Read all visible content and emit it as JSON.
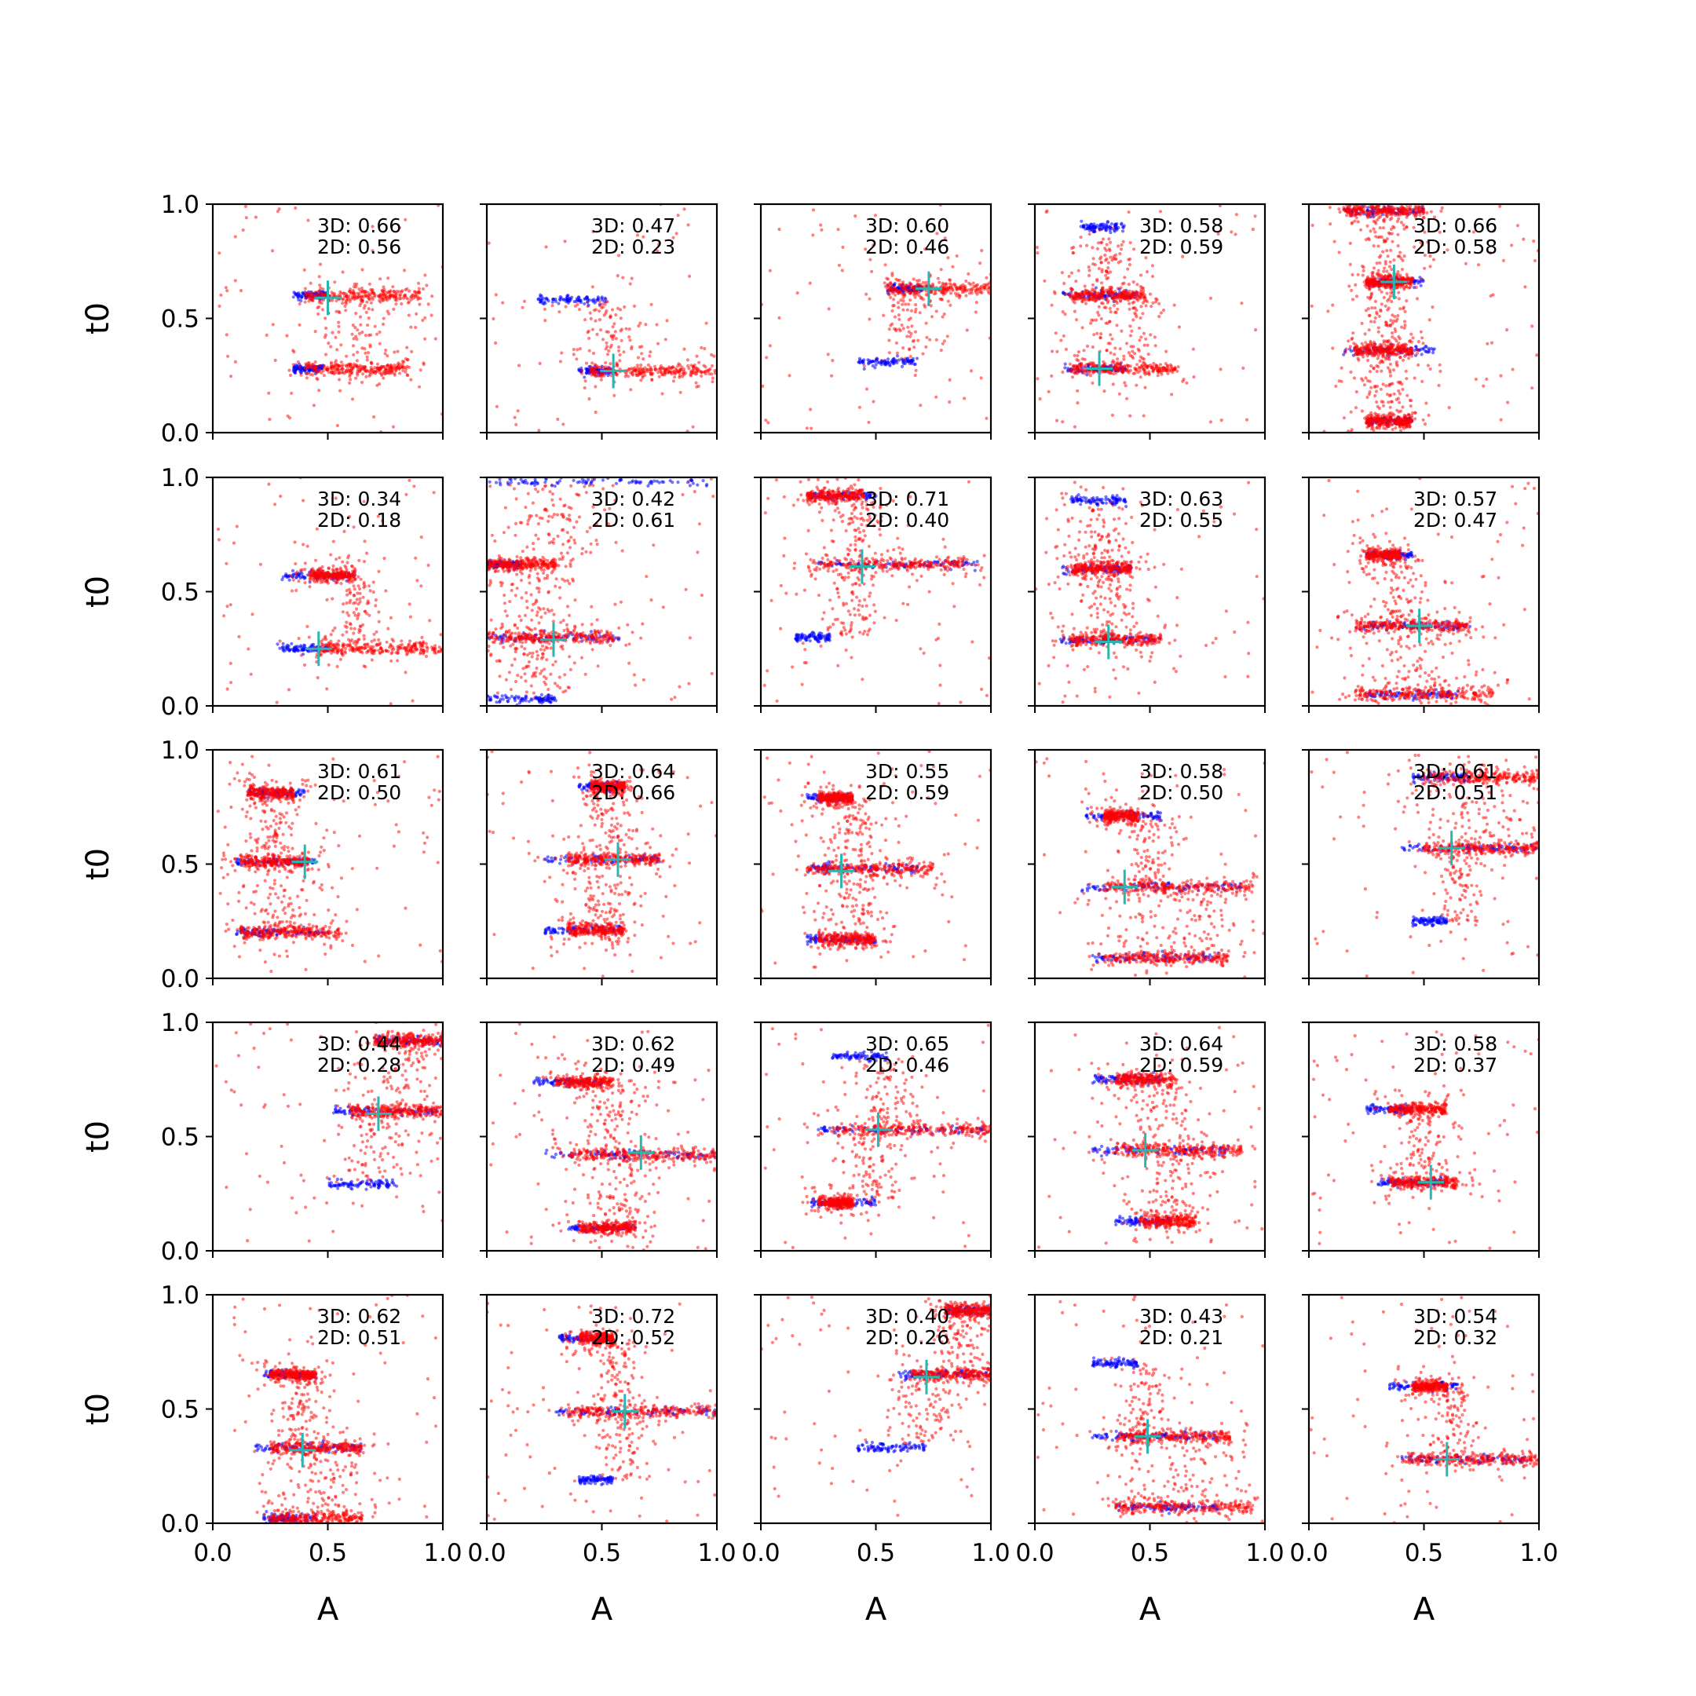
{
  "chart_data": {
    "type": "scatter",
    "layout": {
      "rows": 5,
      "cols": 5
    },
    "xlabel": "A",
    "ylabel": "t0",
    "xlim": [
      0,
      1
    ],
    "ylim": [
      0,
      1
    ],
    "xticks": [
      "0.0",
      "0.5",
      "1.0"
    ],
    "yticks": [
      "0.0",
      "0.5",
      "1.0"
    ],
    "colors": {
      "red": "#ff0000",
      "blue": "#0000ff",
      "marker": "#2ab5b0",
      "axis": "#000000"
    },
    "panels": [
      {
        "row": 0,
        "col": 0,
        "label3d": "3D: 0.66",
        "label2d": "2D: 0.56",
        "marker": {
          "A": 0.5,
          "t0": 0.59
        },
        "bands": [
          {
            "t0": 0.6,
            "bx": [
              0.35,
              0.5
            ],
            "rx": [
              0.4,
              0.9
            ]
          },
          {
            "t0": 0.28,
            "bx": [
              0.35,
              0.48
            ],
            "rx": [
              0.4,
              0.85
            ]
          }
        ]
      },
      {
        "row": 0,
        "col": 1,
        "label3d": "3D: 0.47",
        "label2d": "2D: 0.23",
        "marker": {
          "A": 0.55,
          "t0": 0.27
        },
        "bands": [
          {
            "t0": 0.58,
            "bx": [
              0.22,
              0.52
            ],
            "rx": null
          },
          {
            "t0": 0.27,
            "bx": [
              0.4,
              0.55
            ],
            "rx": [
              0.45,
              1.0
            ]
          }
        ]
      },
      {
        "row": 0,
        "col": 2,
        "label3d": "3D: 0.60",
        "label2d": "2D: 0.46",
        "marker": {
          "A": 0.73,
          "t0": 0.63
        },
        "bands": [
          {
            "t0": 0.63,
            "bx": [
              0.55,
              0.7
            ],
            "rx": [
              0.55,
              1.0
            ]
          },
          {
            "t0": 0.31,
            "bx": [
              0.42,
              0.68
            ],
            "rx": null
          }
        ]
      },
      {
        "row": 0,
        "col": 3,
        "label3d": "3D: 0.58",
        "label2d": "2D: 0.59",
        "marker": {
          "A": 0.28,
          "t0": 0.28
        },
        "bands": [
          {
            "t0": 0.9,
            "bx": [
              0.2,
              0.4
            ],
            "rx": null
          },
          {
            "t0": 0.6,
            "bx": [
              0.12,
              0.45
            ],
            "rx": [
              0.15,
              0.48
            ]
          },
          {
            "t0": 0.28,
            "bx": [
              0.12,
              0.4
            ],
            "rx": [
              0.15,
              0.62
            ]
          }
        ]
      },
      {
        "row": 0,
        "col": 4,
        "label3d": "3D: 0.66",
        "label2d": "2D: 0.58",
        "marker": {
          "A": 0.37,
          "t0": 0.66
        },
        "bands": [
          {
            "t0": 0.97,
            "bx": [
              0.15,
              0.5
            ],
            "rx": [
              0.15,
              0.5
            ]
          },
          {
            "t0": 0.66,
            "bx": [
              0.25,
              0.5
            ],
            "rx": [
              0.25,
              0.45
            ]
          },
          {
            "t0": 0.36,
            "bx": [
              0.15,
              0.55
            ],
            "rx": [
              0.2,
              0.45
            ]
          },
          {
            "t0": 0.05,
            "bx": [
              0.25,
              0.45
            ],
            "rx": [
              0.25,
              0.45
            ]
          }
        ]
      },
      {
        "row": 1,
        "col": 0,
        "label3d": "3D: 0.34",
        "label2d": "2D: 0.18",
        "marker": {
          "A": 0.46,
          "t0": 0.25
        },
        "bands": [
          {
            "t0": 0.57,
            "bx": [
              0.3,
              0.62
            ],
            "rx": [
              0.42,
              0.62
            ]
          },
          {
            "t0": 0.25,
            "bx": [
              0.28,
              0.5
            ],
            "rx": [
              0.45,
              1.0
            ]
          }
        ]
      },
      {
        "row": 1,
        "col": 1,
        "label3d": "3D: 0.42",
        "label2d": "2D: 0.61",
        "marker": {
          "A": 0.29,
          "t0": 0.29
        },
        "bands": [
          {
            "t0": 0.98,
            "bx": [
              0.0,
              1.0
            ],
            "rx": null
          },
          {
            "t0": 0.62,
            "bx": [
              0.0,
              0.15
            ],
            "rx": [
              0.0,
              0.3
            ]
          },
          {
            "t0": 0.3,
            "bx": [
              0.0,
              0.6
            ],
            "rx": [
              0.0,
              0.55
            ]
          },
          {
            "t0": 0.03,
            "bx": [
              0.0,
              0.3
            ],
            "rx": null
          }
        ]
      },
      {
        "row": 1,
        "col": 2,
        "label3d": "3D: 0.71",
        "label2d": "2D: 0.40",
        "marker": {
          "A": 0.44,
          "t0": 0.61
        },
        "bands": [
          {
            "t0": 0.92,
            "bx": [
              0.2,
              0.5
            ],
            "rx": [
              0.2,
              0.45
            ]
          },
          {
            "t0": 0.62,
            "bx": [
              0.25,
              0.95
            ],
            "rx": [
              0.2,
              0.9
            ]
          },
          {
            "t0": 0.3,
            "bx": [
              0.15,
              0.3
            ],
            "rx": null
          }
        ]
      },
      {
        "row": 1,
        "col": 3,
        "label3d": "3D: 0.63",
        "label2d": "2D: 0.55",
        "marker": {
          "A": 0.32,
          "t0": 0.28
        },
        "bands": [
          {
            "t0": 0.9,
            "bx": [
              0.15,
              0.4
            ],
            "rx": null
          },
          {
            "t0": 0.6,
            "bx": [
              0.12,
              0.42
            ],
            "rx": [
              0.15,
              0.42
            ]
          },
          {
            "t0": 0.29,
            "bx": [
              0.1,
              0.55
            ],
            "rx": [
              0.15,
              0.55
            ]
          }
        ]
      },
      {
        "row": 1,
        "col": 4,
        "label3d": "3D: 0.57",
        "label2d": "2D: 0.47",
        "marker": {
          "A": 0.48,
          "t0": 0.35
        },
        "bands": [
          {
            "t0": 0.66,
            "bx": [
              0.25,
              0.45
            ],
            "rx": [
              0.25,
              0.4
            ]
          },
          {
            "t0": 0.35,
            "bx": [
              0.22,
              0.7
            ],
            "rx": [
              0.2,
              0.7
            ]
          },
          {
            "t0": 0.05,
            "bx": [
              0.25,
              0.65
            ],
            "rx": [
              0.2,
              0.8
            ]
          }
        ]
      },
      {
        "row": 2,
        "col": 0,
        "label3d": "3D: 0.61",
        "label2d": "2D: 0.50",
        "marker": {
          "A": 0.4,
          "t0": 0.51
        },
        "bands": [
          {
            "t0": 0.81,
            "bx": [
              0.15,
              0.4
            ],
            "rx": [
              0.15,
              0.35
            ]
          },
          {
            "t0": 0.51,
            "bx": [
              0.1,
              0.45
            ],
            "rx": [
              0.12,
              0.42
            ]
          },
          {
            "t0": 0.2,
            "bx": [
              0.1,
              0.5
            ],
            "rx": [
              0.12,
              0.55
            ]
          }
        ]
      },
      {
        "row": 2,
        "col": 1,
        "label3d": "3D: 0.64",
        "label2d": "2D: 0.66",
        "marker": {
          "A": 0.57,
          "t0": 0.52
        },
        "bands": [
          {
            "t0": 0.84,
            "bx": [
              0.4,
              0.6
            ],
            "rx": [
              0.45,
              0.6
            ]
          },
          {
            "t0": 0.52,
            "bx": [
              0.25,
              0.75
            ],
            "rx": [
              0.35,
              0.75
            ]
          },
          {
            "t0": 0.21,
            "bx": [
              0.25,
              0.6
            ],
            "rx": [
              0.35,
              0.6
            ]
          }
        ]
      },
      {
        "row": 2,
        "col": 2,
        "label3d": "3D: 0.55",
        "label2d": "2D: 0.59",
        "marker": {
          "A": 0.35,
          "t0": 0.47
        },
        "bands": [
          {
            "t0": 0.79,
            "bx": [
              0.2,
              0.4
            ],
            "rx": [
              0.25,
              0.4
            ]
          },
          {
            "t0": 0.48,
            "bx": [
              0.2,
              0.7
            ],
            "rx": [
              0.2,
              0.75
            ]
          },
          {
            "t0": 0.17,
            "bx": [
              0.2,
              0.5
            ],
            "rx": [
              0.25,
              0.5
            ]
          }
        ]
      },
      {
        "row": 2,
        "col": 3,
        "label3d": "3D: 0.58",
        "label2d": "2D: 0.50",
        "marker": {
          "A": 0.39,
          "t0": 0.4
        },
        "bands": [
          {
            "t0": 0.71,
            "bx": [
              0.22,
              0.55
            ],
            "rx": [
              0.3,
              0.45
            ]
          },
          {
            "t0": 0.4,
            "bx": [
              0.2,
              0.9
            ],
            "rx": [
              0.3,
              0.95
            ]
          },
          {
            "t0": 0.09,
            "bx": [
              0.25,
              0.8
            ],
            "rx": [
              0.3,
              0.85
            ]
          }
        ]
      },
      {
        "row": 2,
        "col": 4,
        "label3d": "3D: 0.61",
        "label2d": "2D: 0.51",
        "marker": {
          "A": 0.62,
          "t0": 0.57
        },
        "bands": [
          {
            "t0": 0.88,
            "bx": [
              0.45,
              0.7
            ],
            "rx": [
              0.5,
              1.0
            ]
          },
          {
            "t0": 0.57,
            "bx": [
              0.4,
              1.0
            ],
            "rx": [
              0.5,
              1.0
            ]
          },
          {
            "t0": 0.25,
            "bx": [
              0.45,
              0.6
            ],
            "rx": null
          }
        ]
      },
      {
        "row": 3,
        "col": 0,
        "label3d": "3D: 0.44",
        "label2d": "2D: 0.28",
        "marker": {
          "A": 0.72,
          "t0": 0.6
        },
        "bands": [
          {
            "t0": 0.92,
            "bx": [
              0.7,
              1.0
            ],
            "rx": [
              0.7,
              1.0
            ]
          },
          {
            "t0": 0.61,
            "bx": [
              0.52,
              1.0
            ],
            "rx": [
              0.6,
              1.0
            ]
          },
          {
            "t0": 0.29,
            "bx": [
              0.5,
              0.8
            ],
            "rx": null
          }
        ]
      },
      {
        "row": 3,
        "col": 1,
        "label3d": "3D: 0.62",
        "label2d": "2D: 0.49",
        "marker": {
          "A": 0.67,
          "t0": 0.43
        },
        "bands": [
          {
            "t0": 0.74,
            "bx": [
              0.2,
              0.5
            ],
            "rx": [
              0.3,
              0.55
            ]
          },
          {
            "t0": 0.42,
            "bx": [
              0.25,
              1.0
            ],
            "rx": [
              0.35,
              1.0
            ]
          },
          {
            "t0": 0.1,
            "bx": [
              0.35,
              0.65
            ],
            "rx": [
              0.4,
              0.65
            ]
          }
        ]
      },
      {
        "row": 3,
        "col": 2,
        "label3d": "3D: 0.65",
        "label2d": "2D: 0.46",
        "marker": {
          "A": 0.51,
          "t0": 0.53
        },
        "bands": [
          {
            "t0": 0.85,
            "bx": [
              0.3,
              0.55
            ],
            "rx": null
          },
          {
            "t0": 0.53,
            "bx": [
              0.25,
              1.0
            ],
            "rx": [
              0.3,
              1.0
            ]
          },
          {
            "t0": 0.21,
            "bx": [
              0.22,
              0.5
            ],
            "rx": [
              0.25,
              0.4
            ]
          }
        ]
      },
      {
        "row": 3,
        "col": 3,
        "label3d": "3D: 0.64",
        "label2d": "2D: 0.59",
        "marker": {
          "A": 0.48,
          "t0": 0.44
        },
        "bands": [
          {
            "t0": 0.75,
            "bx": [
              0.25,
              0.55
            ],
            "rx": [
              0.35,
              0.6
            ]
          },
          {
            "t0": 0.44,
            "bx": [
              0.25,
              0.85
            ],
            "rx": [
              0.35,
              0.9
            ]
          },
          {
            "t0": 0.13,
            "bx": [
              0.35,
              0.6
            ],
            "rx": [
              0.45,
              0.7
            ]
          }
        ]
      },
      {
        "row": 3,
        "col": 4,
        "label3d": "3D: 0.58",
        "label2d": "2D: 0.37",
        "marker": {
          "A": 0.53,
          "t0": 0.3
        },
        "bands": [
          {
            "t0": 0.62,
            "bx": [
              0.25,
              0.45
            ],
            "rx": [
              0.35,
              0.6
            ]
          },
          {
            "t0": 0.3,
            "bx": [
              0.3,
              0.6
            ],
            "rx": [
              0.35,
              0.65
            ]
          }
        ]
      },
      {
        "row": 4,
        "col": 0,
        "label3d": "3D: 0.62",
        "label2d": "2D: 0.51",
        "marker": {
          "A": 0.39,
          "t0": 0.32
        },
        "bands": [
          {
            "t0": 0.65,
            "bx": [
              0.22,
              0.45
            ],
            "rx": [
              0.25,
              0.45
            ]
          },
          {
            "t0": 0.33,
            "bx": [
              0.18,
              0.65
            ],
            "rx": [
              0.25,
              0.65
            ]
          },
          {
            "t0": 0.02,
            "bx": [
              0.22,
              0.45
            ],
            "rx": [
              0.25,
              0.65
            ]
          }
        ]
      },
      {
        "row": 4,
        "col": 1,
        "label3d": "3D: 0.72",
        "label2d": "2D: 0.52",
        "marker": {
          "A": 0.6,
          "t0": 0.49
        },
        "bands": [
          {
            "t0": 0.81,
            "bx": [
              0.3,
              0.55
            ],
            "rx": [
              0.4,
              0.55
            ]
          },
          {
            "t0": 0.49,
            "bx": [
              0.3,
              1.0
            ],
            "rx": [
              0.35,
              1.0
            ]
          },
          {
            "t0": 0.19,
            "bx": [
              0.4,
              0.55
            ],
            "rx": null
          }
        ]
      },
      {
        "row": 4,
        "col": 2,
        "label3d": "3D: 0.40",
        "label2d": "2D: 0.26",
        "marker": {
          "A": 0.72,
          "t0": 0.64
        },
        "bands": [
          {
            "t0": 0.93,
            "bx": [
              0.8,
              1.0
            ],
            "rx": [
              0.8,
              1.0
            ]
          },
          {
            "t0": 0.65,
            "bx": [
              0.6,
              1.0
            ],
            "rx": [
              0.65,
              1.0
            ]
          },
          {
            "t0": 0.33,
            "bx": [
              0.42,
              0.72
            ],
            "rx": null
          }
        ]
      },
      {
        "row": 4,
        "col": 3,
        "label3d": "3D: 0.43",
        "label2d": "2D: 0.21",
        "marker": {
          "A": 0.49,
          "t0": 0.38
        },
        "bands": [
          {
            "t0": 0.7,
            "bx": [
              0.25,
              0.45
            ],
            "rx": null
          },
          {
            "t0": 0.38,
            "bx": [
              0.25,
              0.8
            ],
            "rx": [
              0.35,
              0.85
            ]
          },
          {
            "t0": 0.07,
            "bx": [
              0.35,
              0.8
            ],
            "rx": [
              0.35,
              0.95
            ]
          }
        ]
      },
      {
        "row": 4,
        "col": 4,
        "label3d": "3D: 0.54",
        "label2d": "2D: 0.32",
        "marker": {
          "A": 0.6,
          "t0": 0.28
        },
        "bands": [
          {
            "t0": 0.6,
            "bx": [
              0.35,
              0.65
            ],
            "rx": [
              0.45,
              0.6
            ]
          },
          {
            "t0": 0.28,
            "bx": [
              0.4,
              0.95
            ],
            "rx": [
              0.4,
              1.0
            ]
          }
        ]
      }
    ]
  }
}
